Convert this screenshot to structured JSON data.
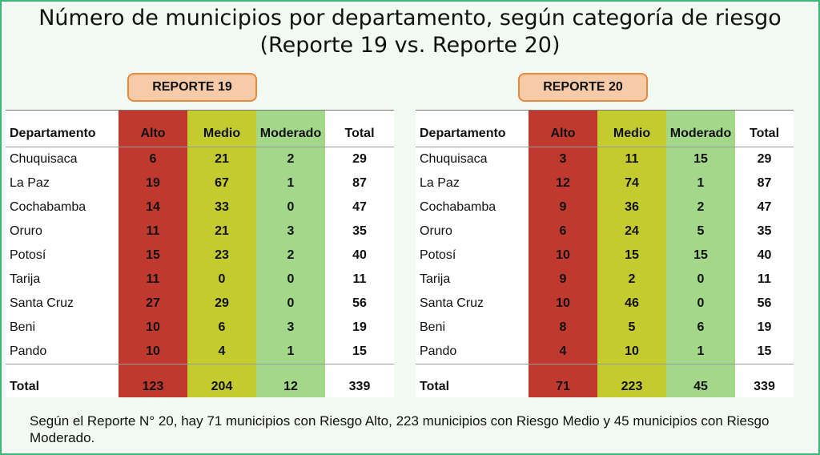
{
  "title": {
    "line1": "Número de municipios por departamento, según categoría de riesgo",
    "line2": "(Reporte 19 vs. Reporte 20)"
  },
  "chart_data": [
    {
      "type": "table",
      "title": "REPORTE 19",
      "columns": [
        "Departamento",
        "Alto",
        "Medio",
        "Moderado",
        "Total"
      ],
      "rows": [
        [
          "Chuquisaca",
          "6",
          "21",
          "2",
          "29"
        ],
        [
          "La Paz",
          "19",
          "67",
          "1",
          "87"
        ],
        [
          "Cochabamba",
          "14",
          "33",
          "0",
          "47"
        ],
        [
          "Oruro",
          "11",
          "21",
          "3",
          "35"
        ],
        [
          "Potosí",
          "15",
          "23",
          "2",
          "40"
        ],
        [
          "Tarija",
          "11",
          "0",
          "0",
          "11"
        ],
        [
          "Santa Cruz",
          "27",
          "29",
          "0",
          "56"
        ],
        [
          "Beni",
          "10",
          "6",
          "3",
          "19"
        ],
        [
          "Pando",
          "10",
          "4",
          "1",
          "15"
        ]
      ],
      "total": [
        "Total",
        "123",
        "204",
        "12",
        "339"
      ]
    },
    {
      "type": "table",
      "title": "REPORTE 20",
      "columns": [
        "Departamento",
        "Alto",
        "Medio",
        "Moderado",
        "Total"
      ],
      "rows": [
        [
          "Chuquisaca",
          "3",
          "11",
          "15",
          "29"
        ],
        [
          "La Paz",
          "12",
          "74",
          "1",
          "87"
        ],
        [
          "Cochabamba",
          "9",
          "36",
          "2",
          "47"
        ],
        [
          "Oruro",
          "6",
          "24",
          "5",
          "35"
        ],
        [
          "Potosí",
          "10",
          "15",
          "15",
          "40"
        ],
        [
          "Tarija",
          "9",
          "2",
          "0",
          "11"
        ],
        [
          "Santa Cruz",
          "10",
          "46",
          "0",
          "56"
        ],
        [
          "Beni",
          "8",
          "5",
          "6",
          "19"
        ],
        [
          "Pando",
          "4",
          "10",
          "1",
          "15"
        ]
      ],
      "total": [
        "Total",
        "71",
        "223",
        "45",
        "339"
      ]
    }
  ],
  "colors": {
    "alto": "#c0392e",
    "medio": "#c3cb2f",
    "moderado": "#a3d88b",
    "badge_fill": "#f8cba8",
    "badge_border": "#e8893e",
    "frame": "#3cb878"
  },
  "footnote": "Según el Reporte N° 20, hay 71 municipios con Riesgo Alto, 223 municipios con Riesgo Medio y 45 municipios con Riesgo Moderado."
}
